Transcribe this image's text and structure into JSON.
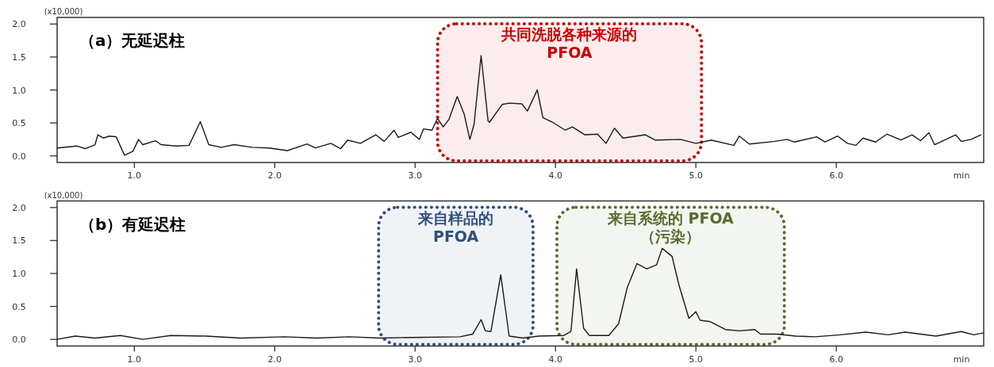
{
  "chart_data": [
    {
      "type": "line",
      "title": "（a）无延迟柱",
      "xlabel": "min",
      "ylabel": "(x10,000)",
      "xlim": [
        0.45,
        7.05
      ],
      "ylim": [
        -0.1,
        2.1
      ],
      "xticks": [
        {
          "value": 1,
          "label": "1.0"
        },
        {
          "value": 2,
          "label": "2.0"
        },
        {
          "value": 3,
          "label": "3.0"
        },
        {
          "value": 4,
          "label": "4.0"
        },
        {
          "value": 5,
          "label": "5.0"
        },
        {
          "value": 6,
          "label": "6.0"
        }
      ],
      "yticks": [
        {
          "value": 0,
          "label": "0.0"
        },
        {
          "value": 0.5,
          "label": "0.5"
        },
        {
          "value": 1,
          "label": "1.0"
        },
        {
          "value": 1.5,
          "label": "1.5"
        },
        {
          "value": 2,
          "label": "2.0"
        }
      ],
      "grid": false,
      "line_style": "solid",
      "bands": [
        {
          "axis": "x",
          "from": 3.16,
          "to": 5.04,
          "label": "共同洗脱各种来源的\nPFOA",
          "color": "#cc0000"
        }
      ],
      "series": [
        {
          "color": "#1a1a1a",
          "x": [
            0.45,
            0.59,
            0.65,
            0.72,
            0.74,
            0.78,
            0.82,
            0.87,
            0.93,
            0.99,
            1.03,
            1.06,
            1.15,
            1.19,
            1.3,
            1.39,
            1.47,
            1.53,
            1.62,
            1.71,
            1.84,
            1.96,
            2.09,
            2.23,
            2.29,
            2.4,
            2.47,
            2.52,
            2.61,
            2.72,
            2.78,
            2.85,
            2.88,
            2.97,
            3.03,
            3.06,
            3.12,
            3.16,
            3.2,
            3.24,
            3.3,
            3.35,
            3.39,
            3.42,
            3.47,
            3.52,
            3.53,
            3.62,
            3.67,
            3.76,
            3.8,
            3.87,
            3.91,
            3.98,
            4.07,
            4.12,
            4.21,
            4.3,
            4.36,
            4.42,
            4.48,
            4.64,
            4.71,
            4.89,
            5.0,
            5.11,
            5.27,
            5.31,
            5.38,
            5.56,
            5.65,
            5.7,
            5.86,
            5.92,
            6.01,
            6.08,
            6.14,
            6.19,
            6.28,
            6.36,
            6.46,
            6.54,
            6.6,
            6.66,
            6.7,
            6.85,
            6.89,
            6.96,
            7.03
          ],
          "values": [
            0.12,
            0.15,
            0.11,
            0.17,
            0.32,
            0.27,
            0.3,
            0.29,
            0.01,
            0.07,
            0.25,
            0.17,
            0.23,
            0.17,
            0.15,
            0.16,
            0.52,
            0.17,
            0.13,
            0.17,
            0.13,
            0.12,
            0.08,
            0.18,
            0.12,
            0.19,
            0.11,
            0.24,
            0.19,
            0.32,
            0.22,
            0.39,
            0.28,
            0.36,
            0.25,
            0.41,
            0.39,
            0.57,
            0.44,
            0.55,
            0.9,
            0.63,
            0.25,
            0.48,
            1.52,
            0.53,
            0.51,
            0.78,
            0.8,
            0.79,
            0.68,
            1.0,
            0.58,
            0.51,
            0.39,
            0.44,
            0.32,
            0.33,
            0.19,
            0.42,
            0.27,
            0.32,
            0.24,
            0.25,
            0.19,
            0.24,
            0.16,
            0.3,
            0.18,
            0.22,
            0.25,
            0.21,
            0.29,
            0.21,
            0.3,
            0.19,
            0.16,
            0.27,
            0.21,
            0.33,
            0.24,
            0.32,
            0.23,
            0.35,
            0.17,
            0.32,
            0.22,
            0.25,
            0.32
          ]
        }
      ]
    },
    {
      "type": "line",
      "title": "（b）有延迟柱",
      "xlabel": "min",
      "ylabel": "(x10,000)",
      "xlim": [
        0.45,
        7.05
      ],
      "ylim": [
        -0.1,
        2.1
      ],
      "xticks": [
        {
          "value": 1,
          "label": "1.0"
        },
        {
          "value": 2,
          "label": "2.0"
        },
        {
          "value": 3,
          "label": "3.0"
        },
        {
          "value": 4,
          "label": "4.0"
        },
        {
          "value": 5,
          "label": "5.0"
        },
        {
          "value": 6,
          "label": "6.0"
        }
      ],
      "yticks": [
        {
          "value": 0,
          "label": "0.0"
        },
        {
          "value": 0.5,
          "label": "0.5"
        },
        {
          "value": 1,
          "label": "1.0"
        },
        {
          "value": 1.5,
          "label": "1.5"
        },
        {
          "value": 2,
          "label": "2.0"
        }
      ],
      "grid": false,
      "line_style": "solid",
      "bands": [
        {
          "axis": "x",
          "from": 2.74,
          "to": 3.84,
          "label": "来自样品的\nPFOA",
          "color": "#2e4f7f"
        },
        {
          "axis": "x",
          "from": 4.01,
          "to": 5.63,
          "label": "来自系统的 PFOA\n（污染）",
          "color": "#5a6b2e"
        }
      ],
      "series": [
        {
          "color": "#1a1a1a",
          "x": [
            0.45,
            0.58,
            0.72,
            0.9,
            1.06,
            1.26,
            1.51,
            1.76,
            2.07,
            2.3,
            2.53,
            2.75,
            2.98,
            3.32,
            3.41,
            3.47,
            3.5,
            3.54,
            3.61,
            3.67,
            3.77,
            3.88,
            4.06,
            4.11,
            4.15,
            4.2,
            4.24,
            4.38,
            4.45,
            4.51,
            4.58,
            4.65,
            4.72,
            4.76,
            4.83,
            4.88,
            4.95,
            5.0,
            5.03,
            5.1,
            5.21,
            5.31,
            5.42,
            5.46,
            5.58,
            5.71,
            5.85,
            6.03,
            6.21,
            6.37,
            6.49,
            6.71,
            6.89,
            6.98,
            7.05
          ],
          "values": [
            0.0,
            0.05,
            0.02,
            0.06,
            0.0,
            0.06,
            0.05,
            0.02,
            0.04,
            0.02,
            0.04,
            0.02,
            0.03,
            0.04,
            0.08,
            0.3,
            0.13,
            0.12,
            0.98,
            0.05,
            0.02,
            0.05,
            0.06,
            0.12,
            1.07,
            0.17,
            0.06,
            0.06,
            0.24,
            0.78,
            1.15,
            1.07,
            1.13,
            1.38,
            1.26,
            0.82,
            0.32,
            0.42,
            0.29,
            0.27,
            0.15,
            0.13,
            0.15,
            0.08,
            0.08,
            0.05,
            0.04,
            0.07,
            0.11,
            0.07,
            0.11,
            0.05,
            0.12,
            0.07,
            0.1
          ]
        }
      ]
    }
  ]
}
